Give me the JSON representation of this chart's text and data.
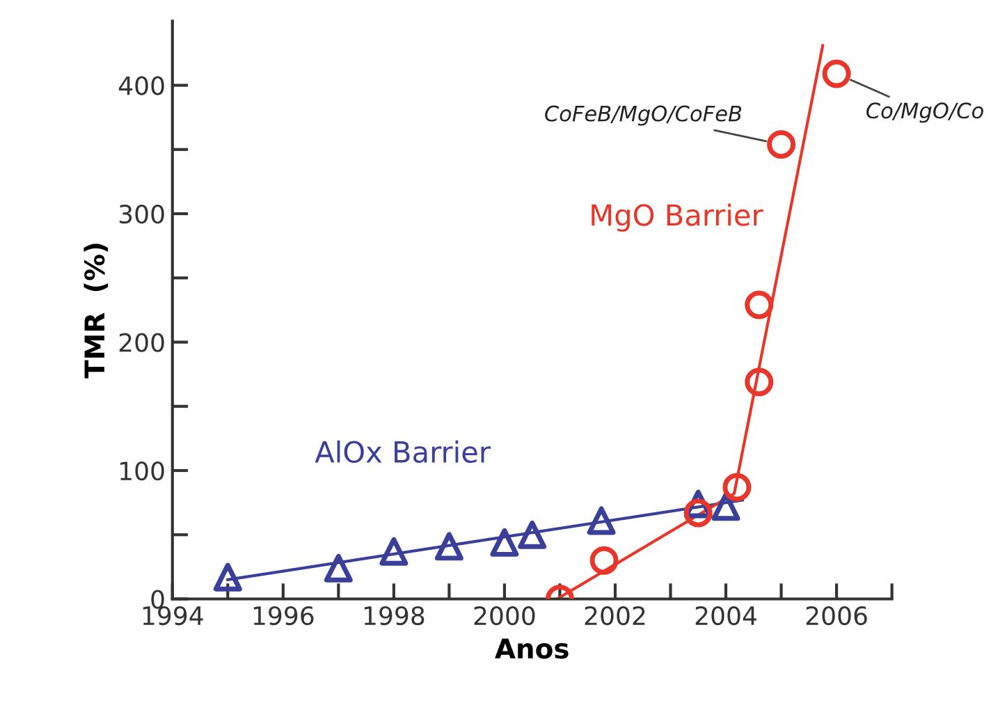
{
  "chart_data": {
    "type": "scatter",
    "xlabel": "Anos",
    "ylabel": "TMR  (%)",
    "xlim": [
      1994,
      2007
    ],
    "ylim": [
      0,
      450
    ],
    "xticks": [
      1994,
      {
        "value": 1995,
        "label": null
      },
      1996,
      {
        "value": 1997,
        "label": null
      },
      1998,
      {
        "value": 1999,
        "label": null
      },
      2000,
      {
        "value": 2001,
        "label": null
      },
      2002,
      {
        "value": 2003,
        "label": null
      },
      2004,
      {
        "value": 2005,
        "label": null
      },
      2006,
      {
        "value": 2007,
        "label": null
      }
    ],
    "yticks": [
      0,
      {
        "value": 50,
        "label": null
      },
      100,
      {
        "value": 150,
        "label": null
      },
      200,
      {
        "value": 250,
        "label": null
      },
      300,
      {
        "value": 350,
        "label": null
      },
      400
    ],
    "grid": false,
    "legend": false,
    "series": [
      {
        "name": "AlOx Barrier",
        "color": "#3a3f9a",
        "marker": "triangle",
        "x": [
          1995,
          1997,
          1998,
          1999,
          2000,
          2000.5,
          2001.75,
          2003.5,
          2004
        ],
        "values": [
          17,
          24,
          37,
          41,
          44,
          50,
          61,
          74,
          72
        ]
      },
      {
        "name": "MgO Barrier",
        "color": "#e8362a",
        "marker": "circle",
        "x": [
          2001,
          2001.8,
          2003.5,
          2004.2,
          2004.6,
          2004.6,
          2005,
          2006
        ],
        "values": [
          0,
          30,
          67,
          87,
          169,
          229,
          354,
          409
        ]
      },
      {
        "type": "line",
        "color": "#3a3f9a",
        "marker": "none",
        "x": [
          1995,
          2004.3
        ],
        "values": [
          15,
          77
        ]
      },
      {
        "type": "line",
        "color": "#e8362a",
        "marker": "none",
        "x": [
          2000.95,
          2004.15,
          2005.75
        ],
        "values": [
          0,
          82,
          431
        ]
      }
    ],
    "annotations": [
      {
        "text": "CoFeB/MgO/CoFeB",
        "x": 2005,
        "y": 354
      },
      {
        "text": "Co/MgO/Co",
        "x": 2006,
        "y": 409
      }
    ]
  }
}
